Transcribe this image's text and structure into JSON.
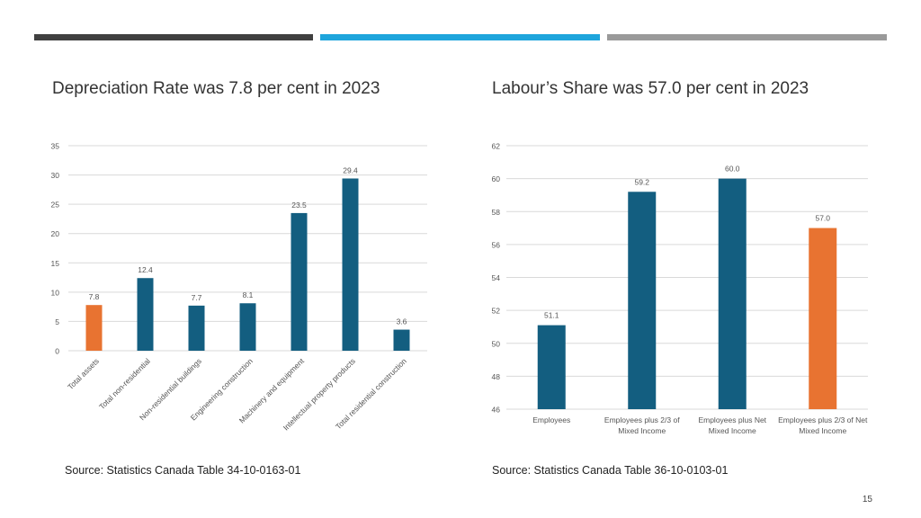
{
  "colors": {
    "bar": "#135e80",
    "highlight": "#e87331",
    "grid": "#d9d9d9",
    "text": "#555555"
  },
  "slide": {
    "page_number": "15"
  },
  "chart_data": [
    {
      "type": "bar",
      "title": "Depreciation Rate was 7.8 per cent in 2023",
      "source": "Source: Statistics Canada Table  34-10-0163-01",
      "categories": [
        "Total assets",
        "Total non-residential",
        "Non-residential buildings",
        "Engineering construction",
        "Machinery and equipment",
        "Intellectual property products",
        "Total residential construction"
      ],
      "values": [
        7.8,
        12.4,
        7.7,
        8.1,
        23.5,
        29.4,
        3.6
      ],
      "labels": [
        "7.8",
        "12.4",
        "7.7",
        "8.1",
        "23.5",
        "29.4",
        "3.6"
      ],
      "highlight_index": 0,
      "ylim": [
        0,
        35
      ],
      "yticks": [
        "0",
        "5",
        "10",
        "15",
        "20",
        "25",
        "30",
        "35"
      ],
      "xlabel": "",
      "ylabel": "",
      "grid": true
    },
    {
      "type": "bar",
      "title": "Labour’s Share was 57.0 per cent in 2023",
      "source": "Source: Statistics Canada Table 36-10-0103-01",
      "categories": [
        [
          "Employees"
        ],
        [
          "Employees plus 2/3 of",
          "Mixed Income"
        ],
        [
          "Employees plus Net",
          "Mixed Income"
        ],
        [
          "Employees plus 2/3 of Net",
          "Mixed Income"
        ]
      ],
      "values": [
        51.1,
        59.2,
        60.0,
        57.0
      ],
      "labels": [
        "51.1",
        "59.2",
        "60.0",
        "57.0"
      ],
      "highlight_index": 3,
      "ylim": [
        46,
        62
      ],
      "yticks": [
        "46",
        "48",
        "50",
        "52",
        "54",
        "56",
        "58",
        "60",
        "62"
      ],
      "xlabel": "",
      "ylabel": "",
      "grid": true
    }
  ]
}
